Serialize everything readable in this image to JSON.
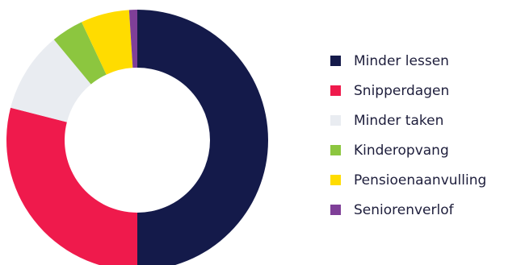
{
  "chart_data": {
    "type": "pie",
    "donut": true,
    "legend_position": "right",
    "categories": [
      "Minder lessen",
      "Snipperdagen",
      "Minder taken",
      "Kinderopvang",
      "Pensioenaanvulling",
      "Seniorenverlof"
    ],
    "values": [
      50,
      29,
      10,
      4,
      6,
      1
    ],
    "colors": [
      "#141a4a",
      "#ef1a4c",
      "#e9ecf1",
      "#8cc63f",
      "#ffdc00",
      "#7f3f98"
    ]
  }
}
